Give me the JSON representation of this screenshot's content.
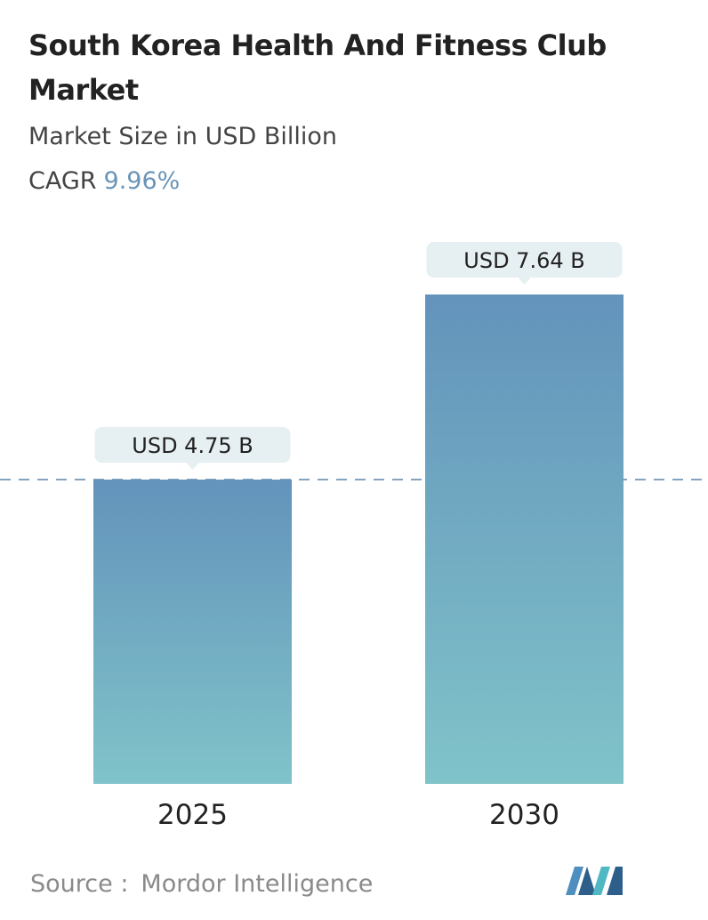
{
  "chart_data": {
    "type": "bar",
    "title": "South Korea Health And Fitness Club Market",
    "subtitle": "Market Size in USD Billion",
    "cagr_label": "CAGR",
    "cagr_value": "9.96%",
    "categories": [
      "2025",
      "2030"
    ],
    "values": [
      4.75,
      7.64
    ],
    "value_labels": [
      "USD 4.75 B",
      "USD 7.64 B"
    ],
    "color_top": "#6393bb",
    "color_bottom": "#80c3c9",
    "source_label": "Source :",
    "source": "Mordor Intelligence"
  }
}
